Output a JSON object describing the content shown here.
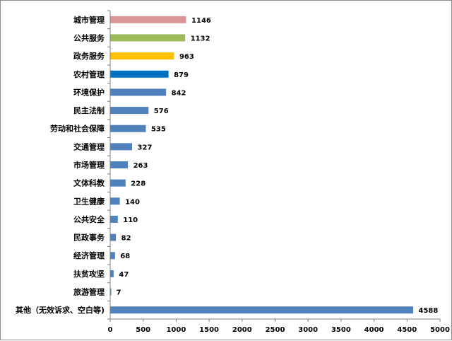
{
  "chart_data": {
    "type": "bar",
    "orientation": "horizontal",
    "categories": [
      "城市管理",
      "公共服务",
      "政务服务",
      "农村管理",
      "环境保护",
      "民主法制",
      "劳动和社会保障",
      "交通管理",
      "市场管理",
      "文体科教",
      "卫生健康",
      "公共安全",
      "民政事务",
      "经济管理",
      "扶贫攻坚",
      "旅游管理",
      "其他（无效诉求、空白等)"
    ],
    "values": [
      1146,
      1132,
      963,
      879,
      842,
      576,
      535,
      327,
      263,
      228,
      140,
      110,
      82,
      68,
      47,
      7,
      4588
    ],
    "bar_colors": [
      "#d99694",
      "#9bbb59",
      "#ffc000",
      "#0070c0",
      "#4f81bd",
      "#4f81bd",
      "#4f81bd",
      "#4f81bd",
      "#4f81bd",
      "#4f81bd",
      "#4f81bd",
      "#4f81bd",
      "#4f81bd",
      "#4f81bd",
      "#4f81bd",
      "#4f81bd",
      "#4f81bd"
    ],
    "xlim": [
      0,
      5000
    ],
    "xticks": [
      0,
      500,
      1000,
      1500,
      2000,
      2500,
      3000,
      3500,
      4000,
      4500,
      5000
    ],
    "title": "",
    "xlabel": "",
    "ylabel": "",
    "grid": false,
    "legend": "none",
    "data_labels": true
  }
}
